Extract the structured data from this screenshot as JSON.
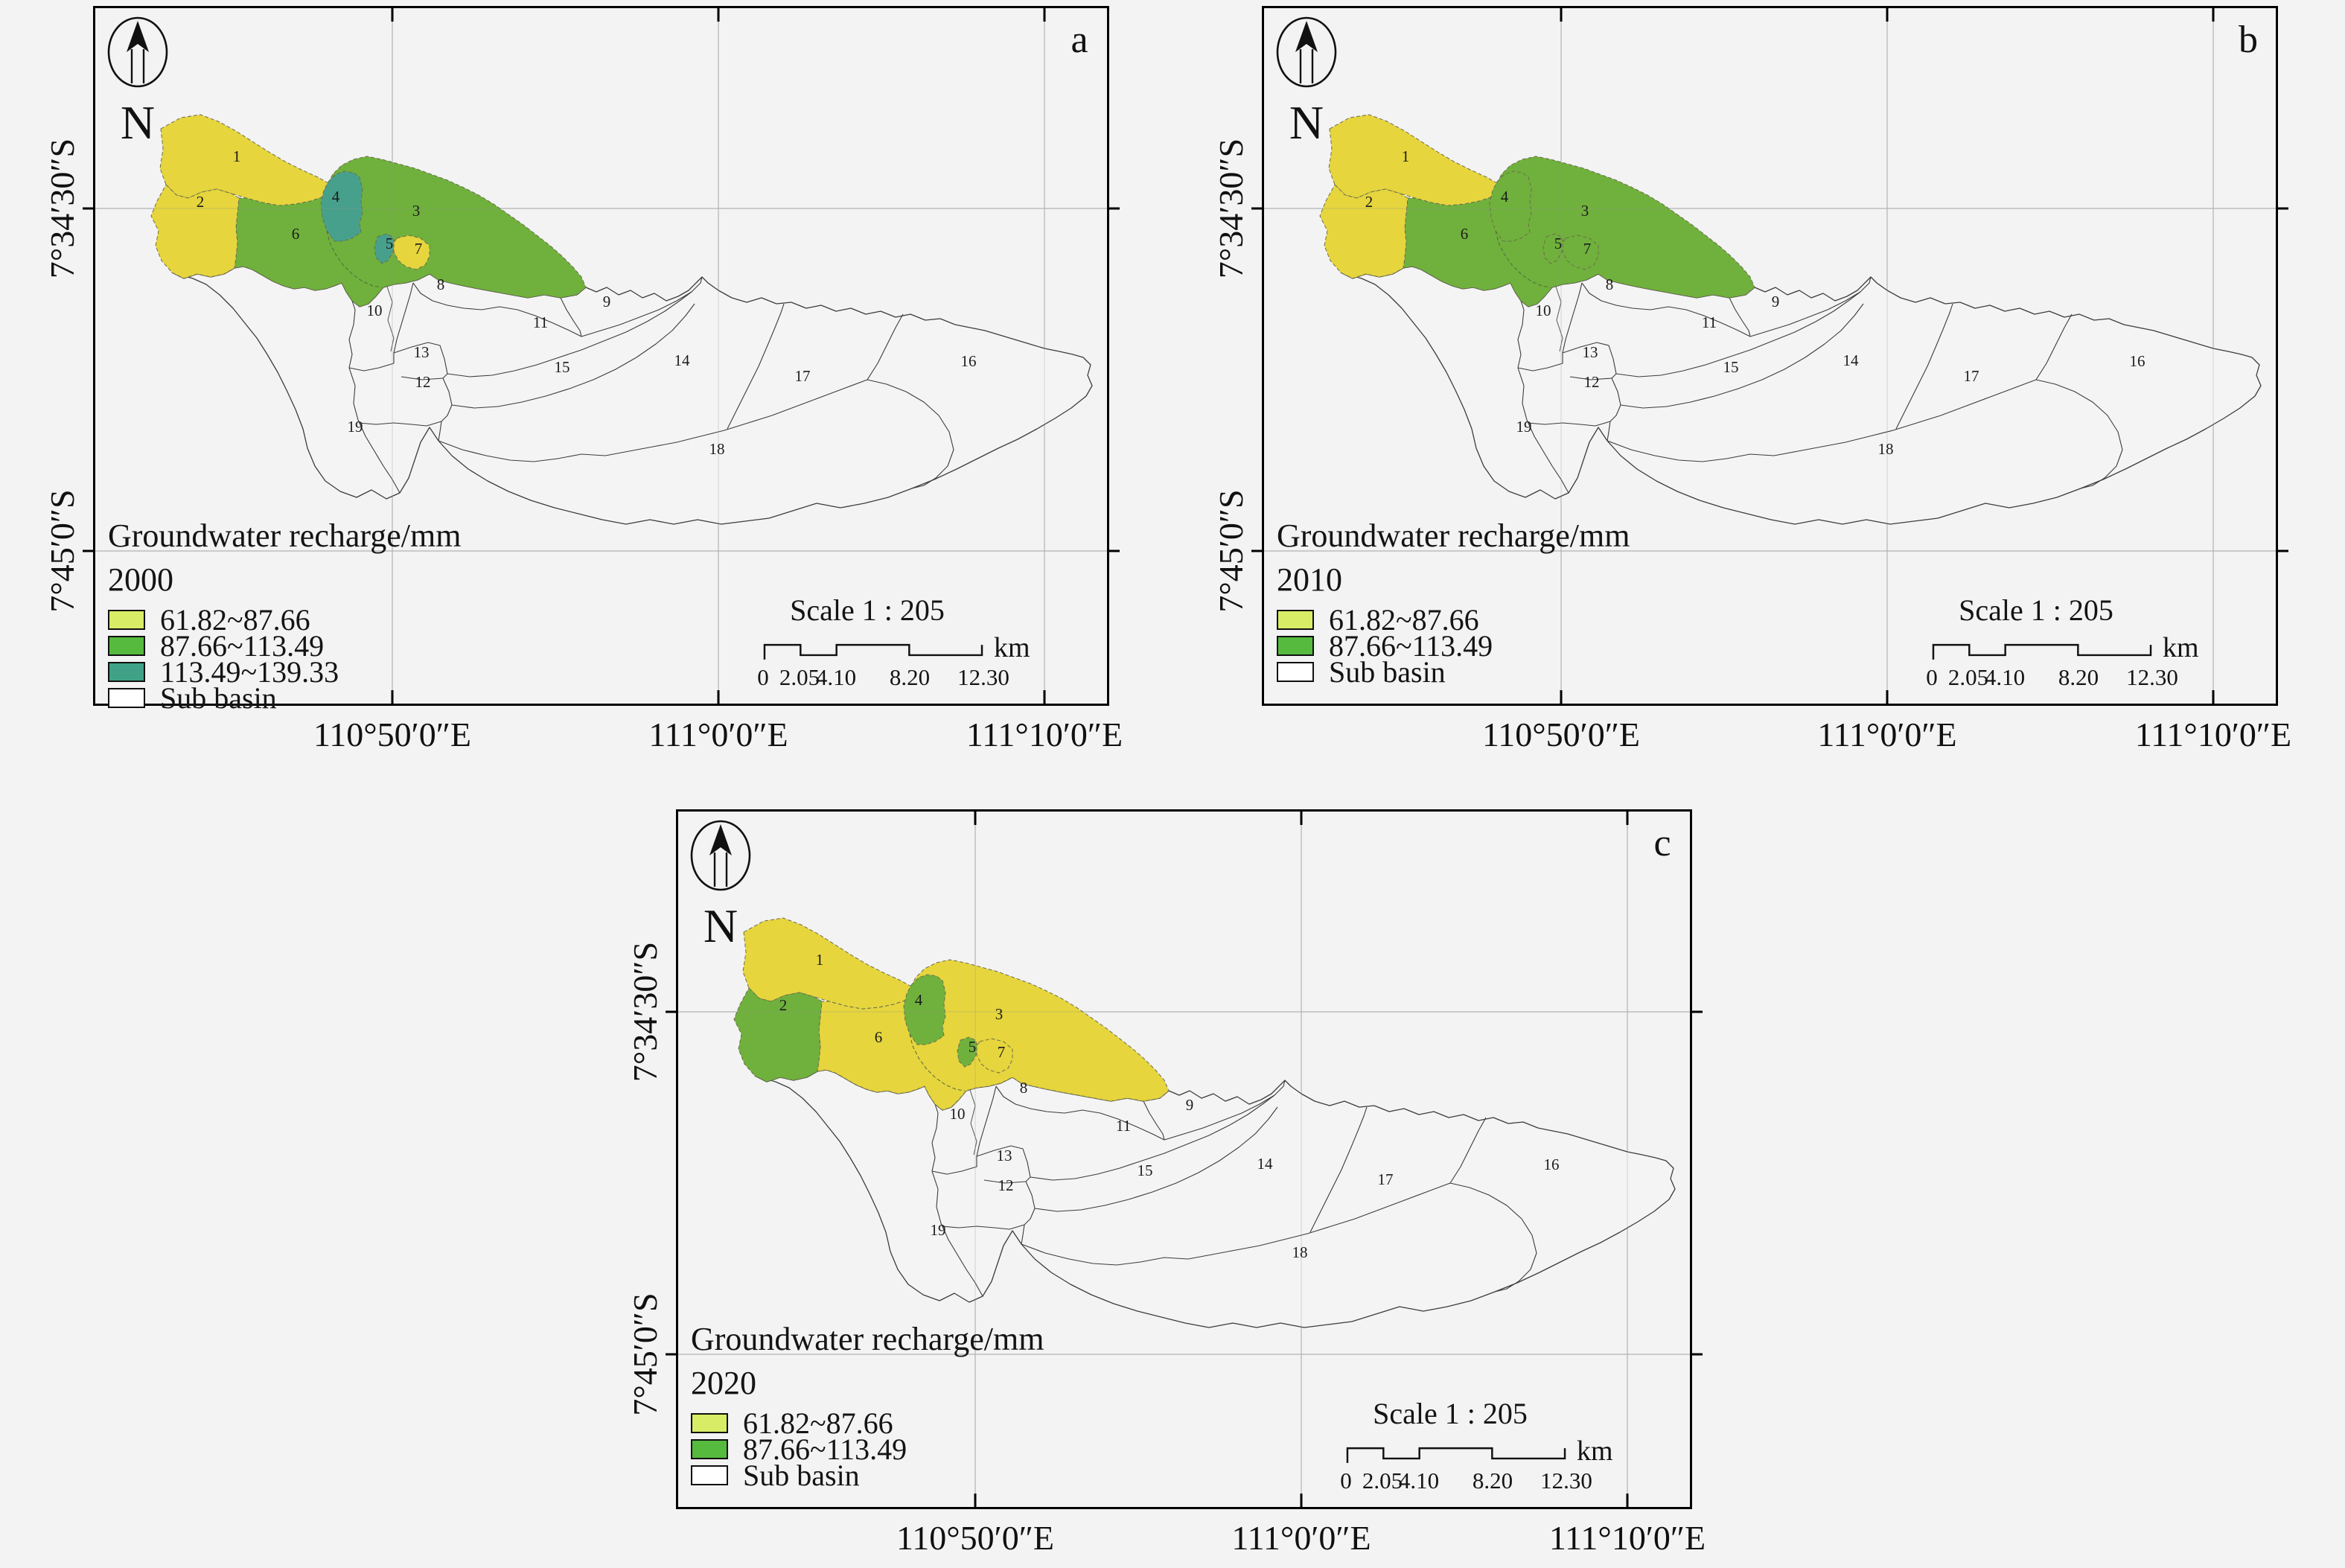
{
  "colors": {
    "background": "#f3f3f4",
    "map_fill": {
      "c1": "#e6d53d",
      "c2": "#6fb13c",
      "c3": "#47a08c"
    },
    "legend_fill": {
      "c1": "#d8ec66",
      "c2": "#56ba3e",
      "c3": "#3fa287",
      "sub": "#ffffff"
    },
    "grid": "#c9c9c9",
    "frame": "#000000",
    "basin_outline": "#3c3c3c"
  },
  "legend_title": "Groundwater recharge/mm",
  "north_label": "N",
  "axes": {
    "x": [
      "110°50′0″E",
      "111°0′0″E",
      "111°10′0″E"
    ],
    "y": [
      "7°34′30″S",
      "7°45′0″S"
    ]
  },
  "scale": {
    "text": "Scale 1 : 205",
    "ticks": [
      "0",
      "2.05",
      "4.10",
      "8.20",
      "12.30"
    ],
    "unit": "km"
  },
  "basin_ids": [
    "1",
    "2",
    "3",
    "4",
    "5",
    "6",
    "7",
    "8",
    "9",
    "10",
    "11",
    "12",
    "13",
    "14",
    "15",
    "16",
    "17",
    "18",
    "19"
  ],
  "panels": [
    {
      "letter": "a",
      "year": "2000",
      "legend": [
        {
          "label": "61.82~87.66",
          "class": "c1"
        },
        {
          "label": "87.66~113.49",
          "class": "c2"
        },
        {
          "label": "113.49~139.33",
          "class": "c3"
        },
        {
          "label": "Sub basin",
          "class": "sub"
        }
      ],
      "classes": {
        "1": "c1",
        "2": "c1",
        "3": "c2",
        "4": "c3",
        "5": "c3",
        "6": "c2",
        "7": "c1"
      }
    },
    {
      "letter": "b",
      "year": "2010",
      "legend": [
        {
          "label": "61.82~87.66",
          "class": "c1"
        },
        {
          "label": "87.66~113.49",
          "class": "c2"
        },
        {
          "label": "Sub basin",
          "class": "sub"
        }
      ],
      "classes": {
        "1": "c1",
        "2": "c1",
        "3": "c2",
        "4": "c2",
        "5": "c2",
        "6": "c2",
        "7": "c2"
      }
    },
    {
      "letter": "c",
      "year": "2020",
      "legend": [
        {
          "label": "61.82~87.66",
          "class": "c1"
        },
        {
          "label": "87.66~113.49",
          "class": "c2"
        },
        {
          "label": "Sub basin",
          "class": "sub"
        }
      ],
      "classes": {
        "1": "c1",
        "2": "c2",
        "3": "c1",
        "4": "c2",
        "5": "c2",
        "6": "c1",
        "7": "c1"
      }
    }
  ]
}
